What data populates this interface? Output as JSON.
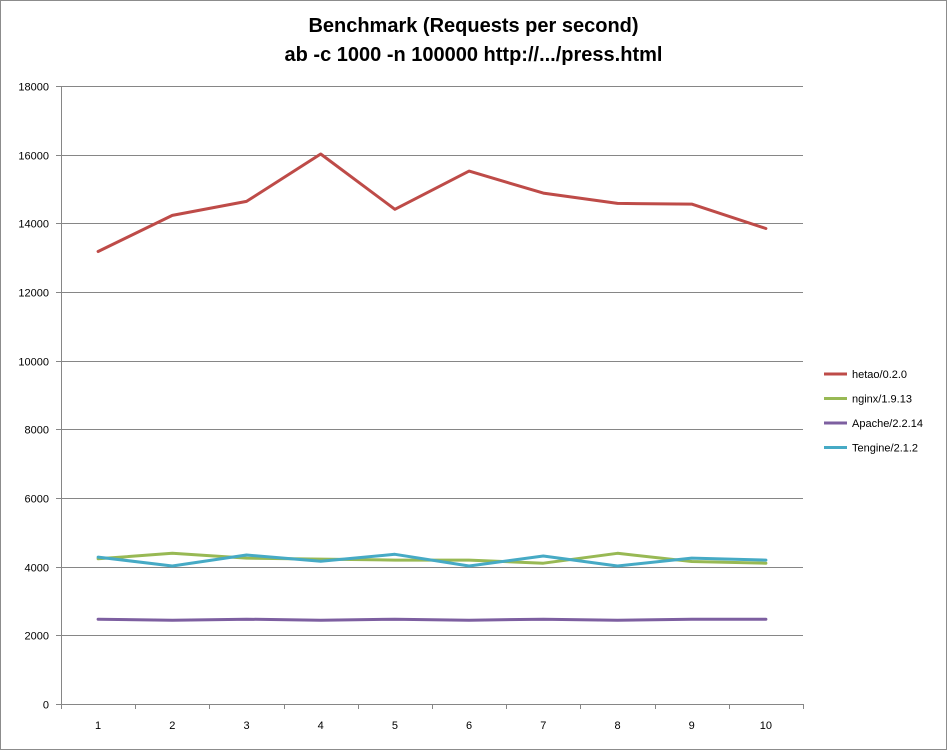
{
  "chart_data": {
    "type": "line",
    "title": "Benchmark (Requests per second)",
    "subtitle": "ab -c 1000 -n 100000 http://.../press.html",
    "xlabel": "",
    "ylabel": "",
    "categories": [
      "1",
      "2",
      "3",
      "4",
      "5",
      "6",
      "7",
      "8",
      "9",
      "10"
    ],
    "ylim": [
      0,
      18000
    ],
    "yticks": [
      0,
      2000,
      4000,
      6000,
      8000,
      10000,
      12000,
      14000,
      16000,
      18000
    ],
    "grid": true,
    "legend_position": "right",
    "series": [
      {
        "name": "hetao/0.2.0",
        "color": "#be4b48",
        "values": [
          13180,
          14230,
          14640,
          16020,
          14410,
          15520,
          14880,
          14580,
          14560,
          13850
        ]
      },
      {
        "name": "nginx/1.9.13",
        "color": "#98b954",
        "values": [
          4230,
          4390,
          4250,
          4220,
          4190,
          4190,
          4100,
          4390,
          4150,
          4100
        ]
      },
      {
        "name": "Apache/2.2.14",
        "color": "#7d5fa0",
        "values": [
          2470,
          2440,
          2470,
          2440,
          2470,
          2440,
          2470,
          2440,
          2470,
          2470
        ]
      },
      {
        "name": "Tengine/2.1.2",
        "color": "#46aac5",
        "values": [
          4280,
          4020,
          4340,
          4160,
          4360,
          4020,
          4310,
          4020,
          4250,
          4190
        ]
      }
    ]
  }
}
